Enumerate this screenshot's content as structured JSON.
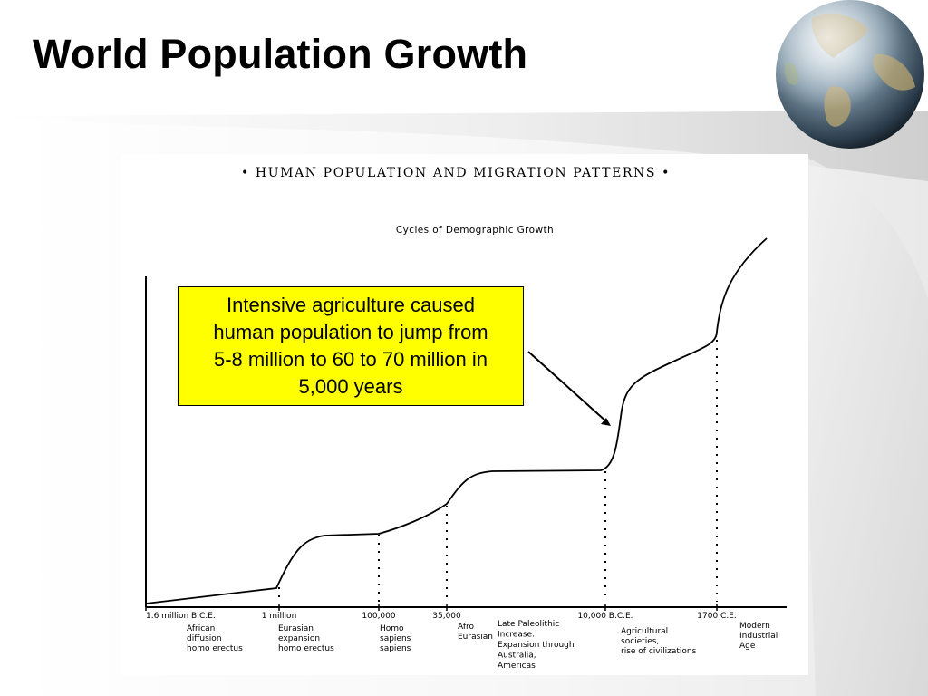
{
  "slide": {
    "title": "World Population Growth",
    "accent_color": "#ffff00"
  },
  "icons": [
    "globe-icon",
    "arrow-icon"
  ],
  "chart_data": {
    "type": "line",
    "title": "• HUMAN POPULATION AND MIGRATION PATTERNS •",
    "subtitle": "Cycles of Demographic Growth",
    "xlabel": "",
    "ylabel": "",
    "grid": false,
    "legend": "none",
    "x_axis": {
      "scale": "non-linear, epochal",
      "ticks": [
        "1.6 million B.C.E.",
        "1 million",
        "100,000",
        "35,000",
        "10,000 B.C.E.",
        "1700 C.E."
      ]
    },
    "epochs": [
      {
        "tick": "1.6 million B.C.E.",
        "label": [
          "African",
          "diffusion",
          "homo erectus"
        ]
      },
      {
        "tick": "1 million",
        "label": [
          "Eurasian",
          "expansion",
          "homo erectus"
        ]
      },
      {
        "tick": "100,000",
        "label": [
          "Homo",
          "sapiens",
          "sapiens"
        ]
      },
      {
        "tick": "35,000",
        "label": [
          "Afro",
          "Eurasian"
        ]
      },
      {
        "tick": "35,000",
        "label": [
          "Late Paleolithic",
          "Increase.",
          "Expansion through",
          "Australia,",
          "Americas"
        ]
      },
      {
        "tick": "10,000 B.C.E.",
        "label": [
          "Agricultural",
          "societies,",
          "rise of civilizations"
        ]
      },
      {
        "tick": "1700 C.E.",
        "label": [
          "Modern",
          "Industrial",
          "Age"
        ]
      }
    ],
    "annotation": {
      "text_lines": [
        "Intensive agriculture caused",
        "human population to jump from",
        "5-8 million to 60 to 70 million in",
        "5,000 years"
      ],
      "target_tick": "10,000 B.C.E."
    }
  }
}
